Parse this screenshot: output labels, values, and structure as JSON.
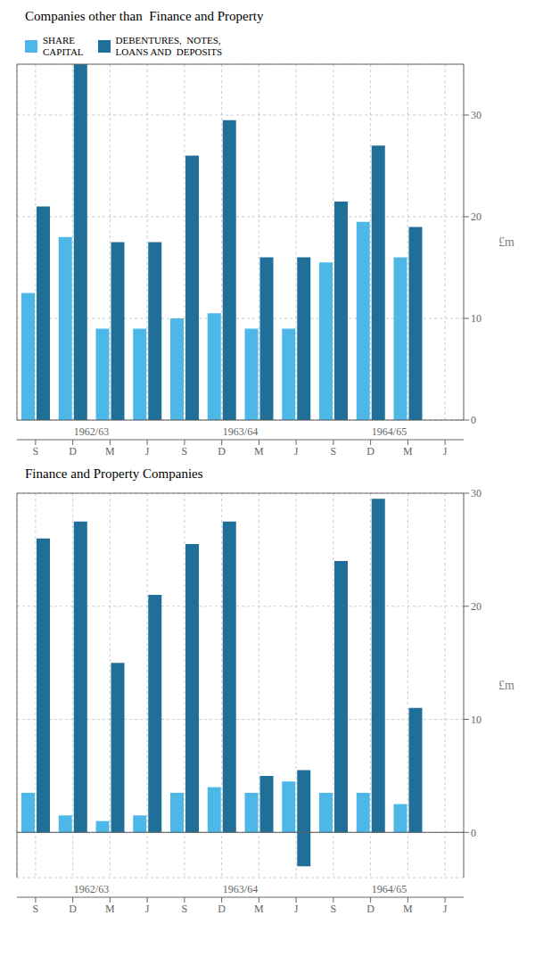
{
  "chart_data": [
    {
      "type": "bar",
      "title": "Companies other than  Finance and Property",
      "ylabel": "£m",
      "categories": [
        "S",
        "D",
        "M",
        "J",
        "S",
        "D",
        "M",
        "J",
        "S",
        "D",
        "M",
        "J"
      ],
      "annotations": [
        "1962/63",
        "1963/64",
        "1964/65"
      ],
      "series": [
        {
          "name": "SHARE\nCAPITAL",
          "color": "#4db8e8",
          "values": [
            12.5,
            18.0,
            9.0,
            9.0,
            10.0,
            10.5,
            9.0,
            9.0,
            15.5,
            19.5,
            16.0,
            0
          ]
        },
        {
          "name": "DEBENTURES,  NOTES,\nLOANS AND  DEPOSITS",
          "color": "#1f6f99",
          "values": [
            21.0,
            35.0,
            17.5,
            17.5,
            26.0,
            29.5,
            16.0,
            16.0,
            21.5,
            27.0,
            19.0,
            0
          ]
        }
      ],
      "ylim": [
        0,
        35
      ],
      "yticks": [
        0,
        10,
        20,
        30
      ],
      "grid": true,
      "legend": "upper left"
    },
    {
      "type": "bar",
      "title": "Finance and Property Companies",
      "ylabel": "£m",
      "categories": [
        "S",
        "D",
        "M",
        "J",
        "S",
        "D",
        "M",
        "J",
        "S",
        "D",
        "M",
        "J"
      ],
      "annotations": [
        "1962/63",
        "1963/64",
        "1964/65"
      ],
      "series": [
        {
          "name": "SHARE\nCAPITAL",
          "color": "#4db8e8",
          "values": [
            3.5,
            1.5,
            1.0,
            1.5,
            3.5,
            4.0,
            3.5,
            4.5,
            3.5,
            3.5,
            2.5,
            0
          ]
        },
        {
          "name": "DEBENTURES,  NOTES,\nLOANS AND  DEPOSITS",
          "color": "#1f6f99",
          "values": [
            26.0,
            27.5,
            15.0,
            21.0,
            25.5,
            27.5,
            5.0,
            5.5,
            24.0,
            29.5,
            11.0,
            0
          ]
        },
        {
          "name": "DEBENTURES,  NOTES,\nLOANS AND  DEPOSITS",
          "color": "#1f6f99",
          "values": [
            0,
            0,
            0,
            0,
            0,
            0,
            0,
            -3,
            0,
            0,
            0,
            0
          ]
        }
      ],
      "ylim": [
        -4,
        30
      ],
      "yticks": [
        0,
        10,
        20,
        30
      ],
      "grid": true
    }
  ]
}
